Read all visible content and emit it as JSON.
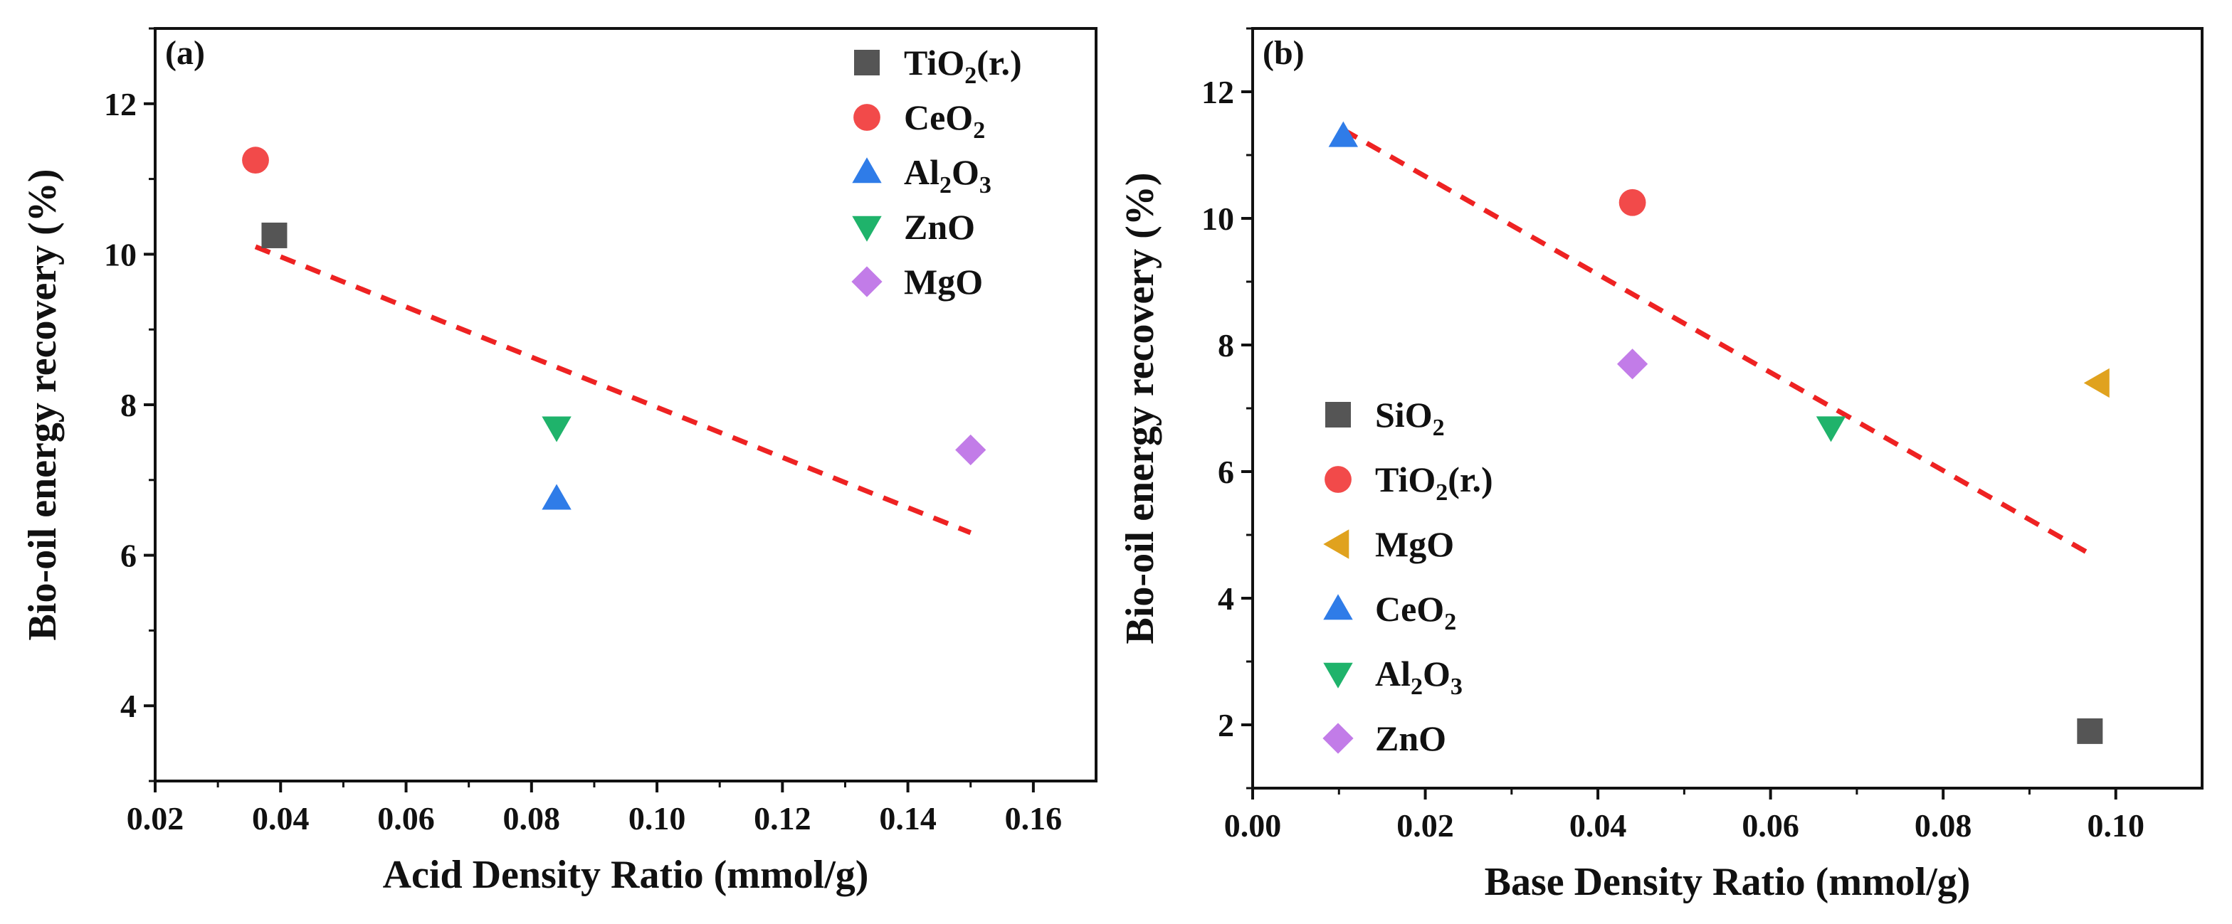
{
  "chart_data": [
    {
      "type": "scatter",
      "panel_label": "(a)",
      "xlabel": "Acid Density Ratio (mmol/g)",
      "ylabel": "Bio-oil energy recovery (%)",
      "xlim": [
        0.02,
        0.17
      ],
      "ylim": [
        3,
        13
      ],
      "xticks": [
        0.02,
        0.04,
        0.06,
        0.08,
        0.1,
        0.12,
        0.14,
        0.16
      ],
      "xtick_labels": [
        "0.02",
        "0.04",
        "0.06",
        "0.08",
        "0.10",
        "0.12",
        "0.14",
        "0.16"
      ],
      "yticks": [
        4,
        6,
        8,
        10,
        12
      ],
      "ytick_labels": [
        "4",
        "6",
        "8",
        "10",
        "12"
      ],
      "legend_position": "top-right",
      "series": [
        {
          "name": "TiO2(r.)",
          "label_parts": [
            [
              "TiO",
              ""
            ],
            [
              "2",
              "sub"
            ],
            [
              "(r.)",
              ""
            ]
          ],
          "marker": "square",
          "color": "#555555",
          "x": [
            0.039
          ],
          "y": [
            10.25
          ]
        },
        {
          "name": "CeO2",
          "label_parts": [
            [
              "CeO",
              ""
            ],
            [
              "2",
              "sub"
            ]
          ],
          "marker": "circle",
          "color": "#f24a4a",
          "x": [
            0.036
          ],
          "y": [
            11.25
          ]
        },
        {
          "name": "Al2O3",
          "label_parts": [
            [
              "Al",
              ""
            ],
            [
              "2",
              "sub"
            ],
            [
              "O",
              ""
            ],
            [
              "3",
              "sub"
            ]
          ],
          "marker": "triangle-up",
          "color": "#2f7ce8",
          "x": [
            0.084
          ],
          "y": [
            6.75
          ]
        },
        {
          "name": "ZnO",
          "label_parts": [
            [
              "ZnO",
              ""
            ]
          ],
          "marker": "triangle-down",
          "color": "#1fb36b",
          "x": [
            0.084
          ],
          "y": [
            7.7
          ]
        },
        {
          "name": "MgO",
          "label_parts": [
            [
              "MgO",
              ""
            ]
          ],
          "marker": "diamond",
          "color": "#c27ce8",
          "x": [
            0.15
          ],
          "y": [
            7.4
          ]
        }
      ],
      "fit_line": {
        "x": [
          0.036,
          0.15
        ],
        "y": [
          10.1,
          6.3
        ],
        "color": "#ee2222",
        "style": "dashed"
      }
    },
    {
      "type": "scatter",
      "panel_label": "(b)",
      "xlabel": "Base Density Ratio (mmol/g)",
      "ylabel": "Bio-oil energy recovery (%)",
      "xlim": [
        0.0,
        0.11
      ],
      "ylim": [
        1,
        13
      ],
      "xticks": [
        0.0,
        0.02,
        0.04,
        0.06,
        0.08,
        0.1
      ],
      "xtick_labels": [
        "0.00",
        "0.02",
        "0.04",
        "0.06",
        "0.08",
        "0.10"
      ],
      "yticks": [
        2,
        4,
        6,
        8,
        10,
        12
      ],
      "ytick_labels": [
        "2",
        "4",
        "6",
        "8",
        "10",
        "12"
      ],
      "legend_position": "bottom-left",
      "series": [
        {
          "name": "SiO2",
          "label_parts": [
            [
              "SiO",
              ""
            ],
            [
              "2",
              "sub"
            ]
          ],
          "marker": "square",
          "color": "#555555",
          "x": [
            0.097
          ],
          "y": [
            1.9
          ]
        },
        {
          "name": "TiO2(r.)",
          "label_parts": [
            [
              "TiO",
              ""
            ],
            [
              "2",
              "sub"
            ],
            [
              "(r.)",
              ""
            ]
          ],
          "marker": "circle",
          "color": "#f24a4a",
          "x": [
            0.044
          ],
          "y": [
            10.25
          ]
        },
        {
          "name": "MgO",
          "label_parts": [
            [
              "MgO",
              ""
            ]
          ],
          "marker": "triangle-left",
          "color": "#e0a21e",
          "x": [
            0.098
          ],
          "y": [
            7.4
          ]
        },
        {
          "name": "CeO2",
          "label_parts": [
            [
              "CeO",
              ""
            ],
            [
              "2",
              "sub"
            ]
          ],
          "marker": "triangle-up",
          "color": "#2f7ce8",
          "x": [
            0.0105
          ],
          "y": [
            11.3
          ]
        },
        {
          "name": "Al2O3",
          "label_parts": [
            [
              "Al",
              ""
            ],
            [
              "2",
              "sub"
            ],
            [
              "O",
              ""
            ],
            [
              "3",
              "sub"
            ]
          ],
          "marker": "triangle-down",
          "color": "#1fb36b",
          "x": [
            0.067
          ],
          "y": [
            6.7
          ]
        },
        {
          "name": "ZnO",
          "label_parts": [
            [
              "ZnO",
              ""
            ]
          ],
          "marker": "diamond",
          "color": "#c27ce8",
          "x": [
            0.044
          ],
          "y": [
            7.7
          ]
        }
      ],
      "fit_line": {
        "x": [
          0.0105,
          0.097
        ],
        "y": [
          11.4,
          4.7
        ],
        "color": "#ee2222",
        "style": "dashed"
      }
    }
  ]
}
